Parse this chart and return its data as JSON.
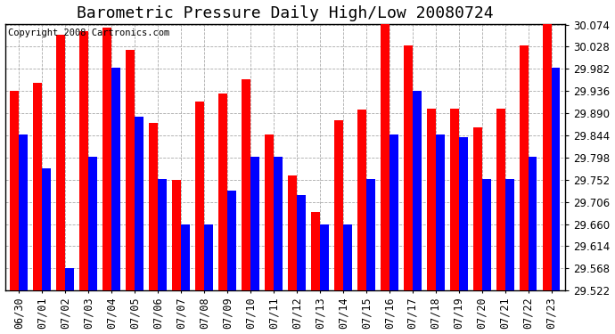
{
  "title": "Barometric Pressure Daily High/Low 20080724",
  "copyright": "Copyright 2008 Cartronics.com",
  "dates": [
    "06/30",
    "07/01",
    "07/02",
    "07/03",
    "07/04",
    "07/05",
    "07/06",
    "07/07",
    "07/08",
    "07/09",
    "07/10",
    "07/11",
    "07/12",
    "07/13",
    "07/14",
    "07/15",
    "07/16",
    "07/17",
    "07/18",
    "07/19",
    "07/20",
    "07/21",
    "07/22",
    "07/23"
  ],
  "highs": [
    29.937,
    29.953,
    30.053,
    30.06,
    30.068,
    30.022,
    29.87,
    29.752,
    29.915,
    29.93,
    29.96,
    29.845,
    29.76,
    29.685,
    29.875,
    29.897,
    30.076,
    30.03,
    29.899,
    29.899,
    29.86,
    29.899,
    30.03,
    30.076
  ],
  "lows": [
    29.845,
    29.775,
    29.568,
    29.799,
    29.984,
    29.883,
    29.753,
    29.66,
    29.66,
    29.73,
    29.8,
    29.799,
    29.72,
    29.66,
    29.66,
    29.753,
    29.845,
    29.937,
    29.845,
    29.84,
    29.753,
    29.753,
    29.799,
    29.984
  ],
  "high_color": "#ff0000",
  "low_color": "#0000ff",
  "bg_color": "#ffffff",
  "grid_color": "#aaaaaa",
  "ymin": 29.522,
  "ymax": 30.076,
  "ytick_step": 0.046,
  "bar_width": 0.38,
  "title_fontsize": 13,
  "tick_fontsize": 8.5,
  "copyright_fontsize": 7.5
}
